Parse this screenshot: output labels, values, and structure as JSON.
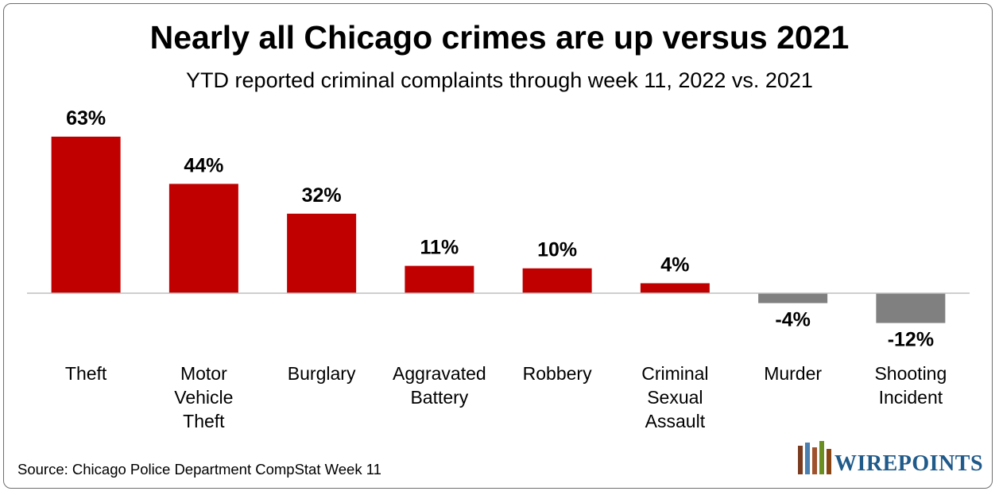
{
  "title": "Nearly all Chicago crimes are up versus 2021",
  "subtitle": "YTD reported criminal complaints through week 11, 2022 vs. 2021",
  "source": "Source: Chicago Police Department CompStat Week 11",
  "logo_text": "WIREPOINTS",
  "colors": {
    "positive": "#c00000",
    "negative": "#808080",
    "axis": "#bfbfbf"
  },
  "chart_data": {
    "type": "bar",
    "categories": [
      "Theft",
      "Motor Vehicle Theft",
      "Burglary",
      "Aggravated Battery",
      "Robbery",
      "Criminal Sexual Assault",
      "Murder",
      "Shooting Incident"
    ],
    "category_lines": [
      [
        "Theft"
      ],
      [
        "Motor",
        "Vehicle",
        "Theft"
      ],
      [
        "Burglary"
      ],
      [
        "Aggravated",
        "Battery"
      ],
      [
        "Robbery"
      ],
      [
        "Criminal",
        "Sexual",
        "Assault"
      ],
      [
        "Murder"
      ],
      [
        "Shooting",
        "Incident"
      ]
    ],
    "values": [
      63,
      44,
      32,
      11,
      10,
      4,
      -4,
      -12
    ],
    "labels": [
      "63%",
      "44%",
      "32%",
      "11%",
      "10%",
      "4%",
      "-4%",
      "-12%"
    ],
    "unit": "%",
    "grid": false,
    "legend": "none"
  }
}
